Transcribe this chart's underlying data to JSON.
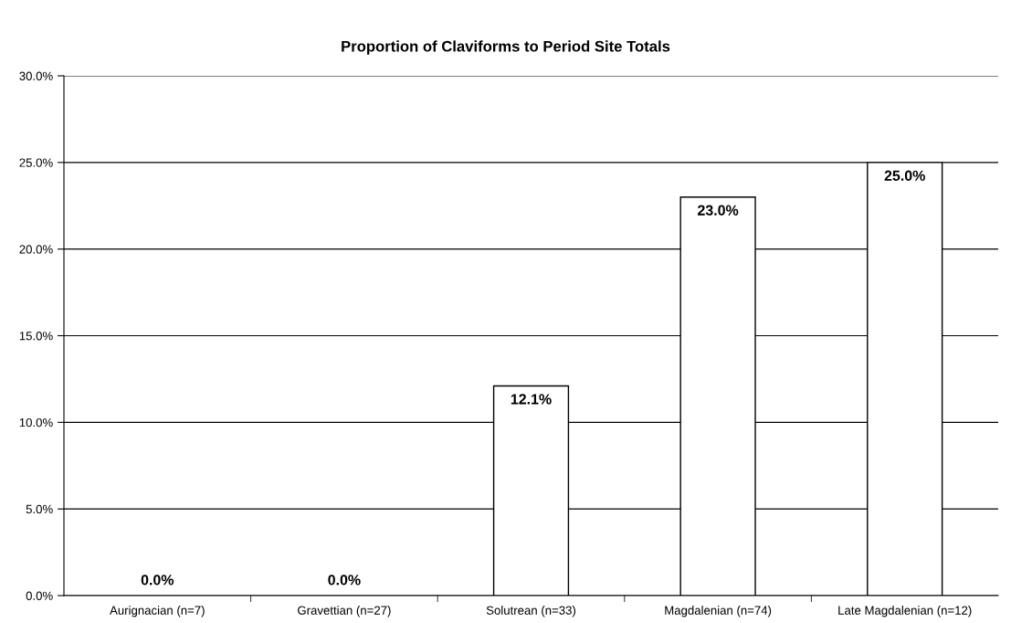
{
  "chart_data": {
    "type": "bar",
    "title": "Proportion of Claviforms to Period Site Totals",
    "categories": [
      "Aurignacian (n=7)",
      "Gravettian (n=27)",
      "Solutrean (n=33)",
      "Magdalenian (n=74)",
      "Late Magdalenian (n=12)"
    ],
    "values": [
      0,
      0,
      12.1,
      23.0,
      25.0
    ],
    "value_labels": [
      "0.0%",
      "0.0%",
      "12.1%",
      "23.0%",
      "25.0%"
    ],
    "color": "#ffffff",
    "ylim": [
      0,
      30
    ],
    "yticks": [
      {
        "value": 0,
        "label": "0.0%"
      },
      {
        "value": 5,
        "label": "5.0%"
      },
      {
        "value": 10,
        "label": "10.0%"
      },
      {
        "value": 15,
        "label": "15.0%"
      },
      {
        "value": 20,
        "label": "20.0%"
      },
      {
        "value": 25,
        "label": "25.0%"
      },
      {
        "value": 30,
        "label": "30.0%"
      }
    ],
    "grid": "y",
    "legend": false
  }
}
